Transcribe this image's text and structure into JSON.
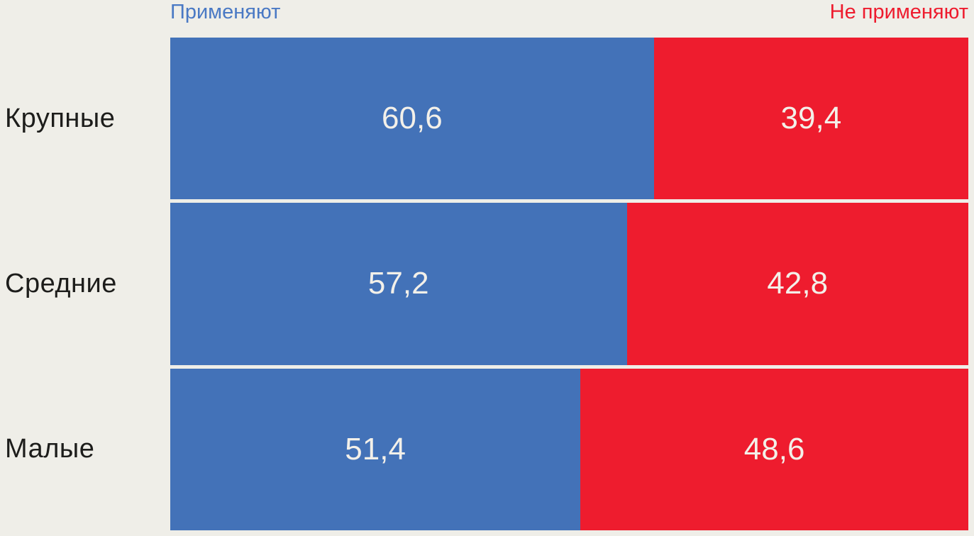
{
  "colors": {
    "background": "#efeee8",
    "apply_bar": "#4372b8",
    "notapply_bar": "#ee1c2e",
    "legend_apply_text": "#4a79c4",
    "legend_notapply_text": "#ee1c2e",
    "category_text": "#1d1d1b",
    "value_text": "#f3f0e9"
  },
  "chart_data": {
    "type": "bar",
    "orientation": "horizontal-stacked",
    "title": "",
    "xlabel": "",
    "ylabel": "",
    "xlim": [
      0,
      100
    ],
    "grid": false,
    "legend_position": "top",
    "categories": [
      "Крупные",
      "Средние",
      "Малые"
    ],
    "series": [
      {
        "name": "Применяют",
        "color": "#4372b8",
        "values": [
          60.6,
          57.2,
          51.4
        ]
      },
      {
        "name": "Не применяют",
        "color": "#ee1c2e",
        "values": [
          39.4,
          42.8,
          48.6
        ]
      }
    ],
    "value_labels": [
      [
        "60,6",
        "39,4"
      ],
      [
        "57,2",
        "42,8"
      ],
      [
        "51,4",
        "48,6"
      ]
    ]
  }
}
